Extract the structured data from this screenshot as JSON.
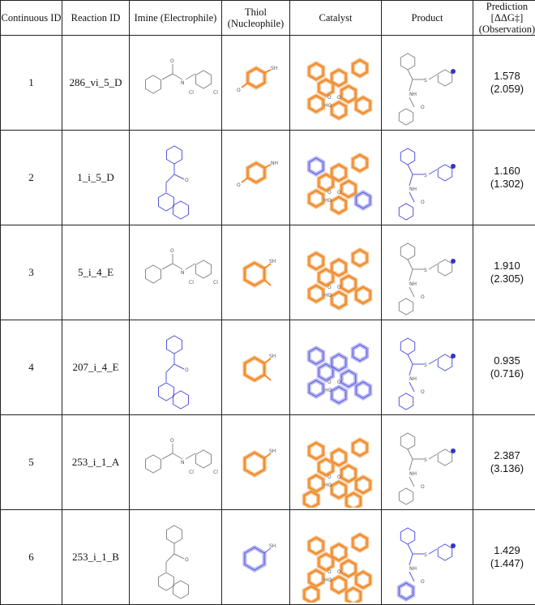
{
  "header": {
    "continuous_id": "Continuous ID",
    "reaction_id": "Reaction ID",
    "imine": "Imine (Electrophile)",
    "thiol": "Thiol (Nucleophile)",
    "catalyst": "Catalyst",
    "product": "Product",
    "prediction_line1": "Prediction [ΔΔG‡]",
    "prediction_line2": "(Observation)"
  },
  "rows": [
    {
      "cid": "1",
      "rid": "286_vi_5_D",
      "pred": "1.578",
      "obs": "(2.059)",
      "imine_color": "gray",
      "thiol_color": "orange",
      "cat_color": "orange",
      "prod_color": "gray"
    },
    {
      "cid": "2",
      "rid": "1_i_5_D",
      "pred": "1.160",
      "obs": "(1.302)",
      "imine_color": "blue",
      "thiol_color": "orange",
      "cat_color": "orange",
      "prod_color": "blue"
    },
    {
      "cid": "3",
      "rid": "5_i_4_E",
      "pred": "1.910",
      "obs": "(2.305)",
      "imine_color": "gray",
      "thiol_color": "orange",
      "cat_color": "orange",
      "prod_color": "gray"
    },
    {
      "cid": "4",
      "rid": "207_i_4_E",
      "pred": "0.935",
      "obs": "(0.716)",
      "imine_color": "blue",
      "thiol_color": "orange",
      "cat_color": "blue",
      "prod_color": "blue"
    },
    {
      "cid": "5",
      "rid": "253_i_1_A",
      "pred": "2.387",
      "obs": "(3.136)",
      "imine_color": "gray",
      "thiol_color": "orange",
      "cat_color": "orange",
      "prod_color": "gray"
    },
    {
      "cid": "6",
      "rid": "253_i_1_B",
      "pred": "1.429",
      "obs": "(1.447)",
      "imine_color": "gray",
      "thiol_color": "blue",
      "cat_color": "orange",
      "prod_color": "blue"
    }
  ],
  "atom_labels": {
    "sh": "SH",
    "nh": "NH",
    "s": "S",
    "o": "O",
    "n": "N",
    "cl": "Cl",
    "ho": "HO"
  }
}
